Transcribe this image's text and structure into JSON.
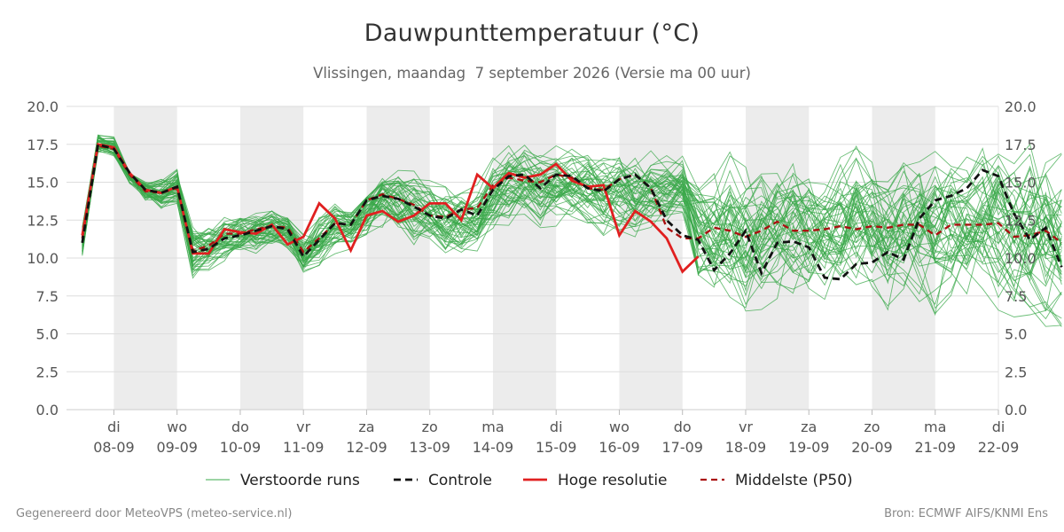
{
  "chart_data": {
    "type": "line",
    "title": "Dauwpunttemperatuur (°C)",
    "subtitle": "Vlissingen, maandag  7 september 2026 (Versie ma 00 uur)",
    "x_start": "2026-09-07 12:00",
    "x_step_hours": 6,
    "xlim": [
      "2026-09-07 06:00",
      "2026-09-22 00:00"
    ],
    "ylim": [
      0,
      20
    ],
    "y_ticks": [
      0.0,
      2.5,
      5.0,
      7.5,
      10.0,
      12.5,
      15.0,
      17.5,
      20.0
    ],
    "y_tick_labels": [
      "0.0",
      "2.5",
      "5.0",
      "7.5",
      "10.0",
      "12.5",
      "15.0",
      "17.5",
      "20.0"
    ],
    "x_ticks": [
      {
        "date": "2026-09-08 00:00",
        "day": "di",
        "label": "08-09"
      },
      {
        "date": "2026-09-09 00:00",
        "day": "wo",
        "label": "09-09"
      },
      {
        "date": "2026-09-10 00:00",
        "day": "do",
        "label": "10-09"
      },
      {
        "date": "2026-09-11 00:00",
        "day": "vr",
        "label": "11-09"
      },
      {
        "date": "2026-09-12 00:00",
        "day": "za",
        "label": "12-09"
      },
      {
        "date": "2026-09-13 00:00",
        "day": "zo",
        "label": "13-09"
      },
      {
        "date": "2026-09-14 00:00",
        "day": "ma",
        "label": "14-09"
      },
      {
        "date": "2026-09-15 00:00",
        "day": "di",
        "label": "15-09"
      },
      {
        "date": "2026-09-16 00:00",
        "day": "wo",
        "label": "16-09"
      },
      {
        "date": "2026-09-17 00:00",
        "day": "do",
        "label": "17-09"
      },
      {
        "date": "2026-09-18 00:00",
        "day": "vr",
        "label": "18-09"
      },
      {
        "date": "2026-09-19 00:00",
        "day": "za",
        "label": "19-09"
      },
      {
        "date": "2026-09-20 00:00",
        "day": "zo",
        "label": "20-09"
      },
      {
        "date": "2026-09-21 00:00",
        "day": "ma",
        "label": "21-09"
      },
      {
        "date": "2026-09-22 00:00",
        "day": "di",
        "label": "22-09"
      }
    ],
    "shaded_days": [
      "08-09",
      "10-09",
      "12-09",
      "14-09",
      "16-09",
      "18-09",
      "20-09"
    ],
    "grid": true,
    "legend_position": "bottom",
    "series": [
      {
        "name": "Verstoorde runs",
        "style": "thin",
        "color": "#3aa84a",
        "envelope": {
          "low": [
            10.0,
            17.0,
            16.6,
            14.5,
            13.2,
            12.3,
            13.2,
            7.8,
            9.0,
            9.5,
            10.5,
            9.6,
            10.2,
            9.7,
            8.6,
            9.0,
            10.0,
            10.6,
            9.6,
            10.6,
            10.6,
            10.0,
            11.0,
            9.6,
            8.5,
            10.0,
            10.4,
            11.0,
            12.1,
            12.0,
            12.1,
            12.3,
            11.5,
            11.1,
            11.2,
            10.7,
            11.8,
            12.4,
            12.6,
            7.0,
            6.5,
            6.0,
            5.5,
            6.6,
            7.0,
            7.0,
            6.8,
            6.8,
            6.8,
            6.8,
            6.8,
            5.7,
            6.7,
            6.4,
            4.4,
            6.9,
            6.9,
            6.8,
            5.2,
            6.0,
            5.5,
            4.4,
            4.0
          ],
          "high": [
            12.5,
            18.2,
            18.3,
            15.6,
            15.2,
            15.5,
            16.1,
            12.6,
            12.4,
            13.1,
            13.7,
            13.4,
            13.3,
            13.0,
            12.1,
            13.4,
            13.7,
            13.0,
            14.0,
            15.6,
            16.1,
            16.0,
            15.6,
            15.2,
            14.3,
            15.0,
            16.6,
            17.4,
            17.8,
            17.6,
            17.6,
            17.5,
            17.8,
            17.4,
            17.8,
            17.8,
            17.5,
            17.0,
            17.2,
            16.7,
            16.5,
            18.1,
            17.4,
            16.6,
            17.2,
            17.9,
            16.8,
            15.7,
            17.3,
            18.4,
            17.2,
            16.8,
            17.2,
            17.3,
            18.3,
            17.2,
            17.3,
            18.2,
            18.7,
            17.0,
            17.8,
            18.9,
            18.2
          ]
        }
      },
      {
        "name": "Controle",
        "style": "dashed",
        "color": "#111111",
        "values": [
          11.0,
          17.5,
          17.2,
          15.6,
          14.5,
          14.3,
          14.7,
          10.4,
          10.6,
          11.3,
          11.5,
          11.8,
          12.1,
          11.9,
          10.1,
          11.2,
          12.3,
          12.2,
          13.8,
          14.1,
          13.9,
          13.4,
          12.8,
          12.6,
          13.2,
          12.8,
          14.5,
          15.4,
          15.5,
          14.6,
          15.5,
          15.4,
          14.6,
          14.4,
          15.2,
          15.5,
          14.6,
          12.5,
          11.5,
          11.2,
          9.2,
          10.3,
          11.8,
          9.0,
          11.0,
          11.1,
          10.7,
          8.7,
          8.6,
          9.6,
          9.7,
          10.4,
          9.9,
          12.6,
          13.8,
          14.1,
          14.6,
          15.8,
          15.4,
          12.9,
          11.2,
          12.0,
          9.4
        ]
      },
      {
        "name": "Hoge resolutie",
        "style": "thick",
        "color": "#e02020",
        "values": [
          11.5,
          17.5,
          17.3,
          15.6,
          14.5,
          14.3,
          14.7,
          10.3,
          10.3,
          11.9,
          11.7,
          11.6,
          12.2,
          10.9,
          11.4,
          13.6,
          12.6,
          10.5,
          12.8,
          13.1,
          12.4,
          12.8,
          13.6,
          13.6,
          12.5,
          15.5,
          14.6,
          15.6,
          15.3,
          15.5,
          16.2,
          15.1,
          14.7,
          14.8,
          11.5,
          13.1,
          12.4,
          11.3,
          9.1,
          10.1
        ]
      },
      {
        "name": "Middelste (P50)",
        "style": "dashed",
        "color": "#aa1111",
        "values": [
          11.3,
          17.4,
          17.2,
          15.5,
          14.4,
          14.3,
          14.6,
          10.5,
          10.8,
          11.6,
          11.6,
          11.9,
          12.1,
          12.0,
          10.4,
          11.3,
          12.3,
          12.2,
          13.8,
          14.2,
          13.9,
          13.5,
          12.8,
          12.7,
          13.2,
          13.3,
          14.8,
          15.3,
          15.1,
          15.0,
          15.5,
          15.3,
          14.6,
          14.5,
          15.2,
          15.5,
          14.6,
          12.0,
          11.3,
          11.3,
          12.0,
          11.8,
          11.4,
          11.8,
          12.4,
          11.8,
          11.8,
          11.9,
          12.1,
          11.9,
          12.1,
          12.0,
          12.2,
          12.2,
          11.5,
          12.2,
          12.2,
          12.2,
          12.3,
          11.4,
          11.5,
          11.8,
          11.0
        ]
      }
    ]
  },
  "footer": {
    "left": "Gegenereerd door MeteoVPS (meteo-service.nl)",
    "right": "Bron: ECMWF AIFS/KNMI Ens"
  }
}
